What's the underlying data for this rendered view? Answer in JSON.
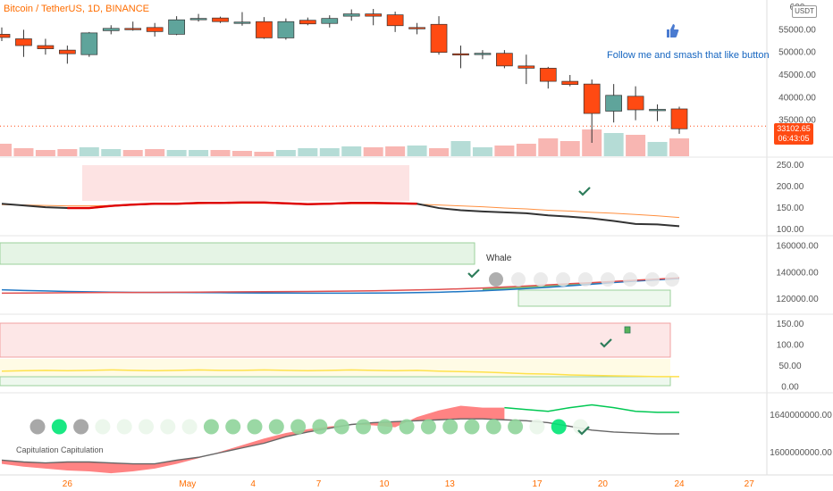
{
  "header": {
    "title": "Bitcoin / TetherUS, 1D, BINANCE",
    "promo_text": "Follow me and smash that like button",
    "currency_badge": "USDT",
    "last_price": "33102.65",
    "countdown": "06:43:05",
    "whale_label": "Whale",
    "capitulation_label": "Capitulation Capitulation"
  },
  "colors": {
    "up": "#5fa49b",
    "down": "#ff4a12",
    "brand": "#ff6d00",
    "accent_blue": "#1565c0"
  },
  "chart_data": [
    {
      "type": "candlestick",
      "title": "Bitcoin / TetherUS, 1D, BINANCE",
      "x_ticks": [
        "26",
        "May",
        "4",
        "7",
        "10",
        "13",
        "17",
        "20",
        "24",
        "27"
      ],
      "ylim": [
        30000,
        60000
      ],
      "y_ticks": [
        "600",
        "55000.00",
        "50000.00",
        "45000.00",
        "40000.00",
        "35000.00"
      ],
      "candles": [
        {
          "o": 54000,
          "h": 55500,
          "l": 52500,
          "c": 53300
        },
        {
          "o": 53000,
          "h": 55000,
          "l": 49000,
          "c": 51500
        },
        {
          "o": 51500,
          "h": 53000,
          "l": 49500,
          "c": 50800
        },
        {
          "o": 50500,
          "h": 51500,
          "l": 47500,
          "c": 49700
        },
        {
          "o": 49500,
          "h": 54500,
          "l": 49000,
          "c": 54300
        },
        {
          "o": 54800,
          "h": 56000,
          "l": 54000,
          "c": 55300
        },
        {
          "o": 55300,
          "h": 56800,
          "l": 54800,
          "c": 55200
        },
        {
          "o": 55500,
          "h": 56500,
          "l": 53500,
          "c": 54600
        },
        {
          "o": 54000,
          "h": 58000,
          "l": 53800,
          "c": 57200
        },
        {
          "o": 57300,
          "h": 58500,
          "l": 56800,
          "c": 57500
        },
        {
          "o": 57600,
          "h": 57900,
          "l": 56500,
          "c": 56800
        },
        {
          "o": 56600,
          "h": 58900,
          "l": 55900,
          "c": 56700
        },
        {
          "o": 56800,
          "h": 57800,
          "l": 53000,
          "c": 53200
        },
        {
          "o": 53200,
          "h": 57500,
          "l": 52800,
          "c": 56800
        },
        {
          "o": 57100,
          "h": 57700,
          "l": 56000,
          "c": 56300
        },
        {
          "o": 56400,
          "h": 58200,
          "l": 55500,
          "c": 57500
        },
        {
          "o": 58000,
          "h": 59500,
          "l": 57000,
          "c": 58500
        },
        {
          "o": 58500,
          "h": 59600,
          "l": 56000,
          "c": 58000
        },
        {
          "o": 58300,
          "h": 59000,
          "l": 54500,
          "c": 55900
        },
        {
          "o": 55500,
          "h": 56500,
          "l": 54000,
          "c": 55300
        },
        {
          "o": 56200,
          "h": 58000,
          "l": 49500,
          "c": 50000
        },
        {
          "o": 49700,
          "h": 51500,
          "l": 46500,
          "c": 49600
        },
        {
          "o": 49600,
          "h": 50500,
          "l": 48500,
          "c": 49800
        },
        {
          "o": 49800,
          "h": 50500,
          "l": 46500,
          "c": 47000
        },
        {
          "o": 47000,
          "h": 49500,
          "l": 43000,
          "c": 46500
        },
        {
          "o": 46500,
          "h": 46800,
          "l": 42000,
          "c": 43600
        },
        {
          "o": 43600,
          "h": 45000,
          "l": 42500,
          "c": 42900
        },
        {
          "o": 43000,
          "h": 44000,
          "l": 30000,
          "c": 36500
        },
        {
          "o": 37000,
          "h": 43000,
          "l": 34500,
          "c": 40500
        },
        {
          "o": 40300,
          "h": 42500,
          "l": 35000,
          "c": 37300
        },
        {
          "o": 37300,
          "h": 38500,
          "l": 34800,
          "c": 37400
        },
        {
          "o": 37500,
          "h": 38000,
          "l": 32000,
          "c": 33100
        }
      ],
      "volume_up": [
        false,
        false,
        false,
        false,
        true,
        true,
        false,
        false,
        true,
        true,
        false,
        false,
        false,
        true,
        true,
        true,
        true,
        false,
        false,
        true,
        false,
        true,
        true,
        false,
        false,
        false,
        false,
        false,
        true,
        false,
        true,
        false
      ]
    },
    {
      "type": "line",
      "ylim": [
        90,
        260
      ],
      "y_ticks": [
        "250.00",
        "200.00",
        "150.00",
        "100.00"
      ],
      "series": [
        {
          "values": [
            160,
            156,
            152,
            150,
            150,
            155,
            158,
            160,
            160,
            162,
            162,
            163,
            163,
            161,
            159,
            160,
            162,
            162,
            161,
            160,
            150,
            145,
            142,
            140,
            138,
            133,
            130,
            126,
            120,
            113,
            112,
            108
          ]
        },
        {
          "values": [
            158,
            157,
            156,
            155,
            155,
            156,
            158,
            159,
            159,
            160,
            161,
            161,
            161,
            161,
            160,
            160,
            160,
            160,
            160,
            159,
            157,
            155,
            153,
            150,
            148,
            145,
            143,
            140,
            138,
            135,
            132,
            128
          ]
        }
      ]
    },
    {
      "type": "line",
      "ylim": [
        110000,
        165000
      ],
      "y_ticks": [
        "160000.00",
        "140000.00",
        "120000.00"
      ],
      "series": [
        {
          "values": [
            127000,
            126500,
            126200,
            125800,
            125500,
            125300,
            125100,
            125000,
            125000,
            124900,
            124800,
            124700,
            124600,
            124600,
            124500,
            124500,
            124500,
            124600,
            124700,
            124900,
            125200,
            125700,
            126300,
            127000,
            127900,
            128900,
            130000,
            131200,
            132500,
            133600,
            134500,
            135500
          ]
        },
        {
          "values": [
            124500,
            124600,
            124700,
            124800,
            124900,
            125000,
            125000,
            125100,
            125200,
            125300,
            125400,
            125500,
            125600,
            125700,
            125800,
            125900,
            126100,
            126300,
            126600,
            126900,
            127300,
            127800,
            128400,
            129100,
            129900,
            130700,
            131600,
            132400,
            133300,
            134200,
            135100,
            136000
          ]
        }
      ]
    },
    {
      "type": "line",
      "ylim": [
        -5,
        165
      ],
      "y_ticks": [
        "150.00",
        "100.00",
        "50.00",
        "0.00"
      ],
      "series": [
        {
          "values": [
            38,
            39,
            40,
            39,
            40,
            41,
            40,
            39,
            40,
            41,
            40,
            40,
            41,
            40,
            39,
            40,
            41,
            40,
            39,
            40,
            38,
            37,
            36,
            34,
            32,
            31,
            29,
            28,
            27,
            26,
            25,
            25
          ]
        }
      ]
    },
    {
      "type": "line",
      "ylim": [
        1580000000,
        1660000000
      ],
      "y_ticks": [
        "1640000000.00",
        "1600000000.00"
      ],
      "series": [
        {
          "values": [
            1592000000,
            1590000000,
            1589000000,
            1590000000,
            1590000000,
            1589000000,
            1588000000,
            1588000000,
            1592000000,
            1595000000,
            1600000000,
            1605000000,
            1610000000,
            1617000000,
            1622000000,
            1626000000,
            1630000000,
            1632000000,
            1633000000,
            1634000000,
            1635000000,
            1636000000,
            1636000000,
            1635000000,
            1634000000,
            1632000000,
            1628000000,
            1624000000,
            1622000000,
            1621000000,
            1620000000,
            1620000000
          ]
        },
        {
          "values": [
            1588000000,
            1585000000,
            1583000000,
            1581000000,
            1580000000,
            1578000000,
            1580000000,
            1583000000,
            1588000000,
            1594000000,
            1601000000,
            1608000000,
            1615000000,
            1621000000,
            1625000000,
            1628000000,
            1630000000,
            1629000000,
            1627000000,
            1638000000,
            1645000000,
            1650000000,
            1648000000,
            1648000000,
            1646000000,
            1644000000,
            1648000000,
            1651000000,
            1648000000,
            1644000000,
            1643000000,
            1643000000
          ]
        }
      ]
    }
  ]
}
